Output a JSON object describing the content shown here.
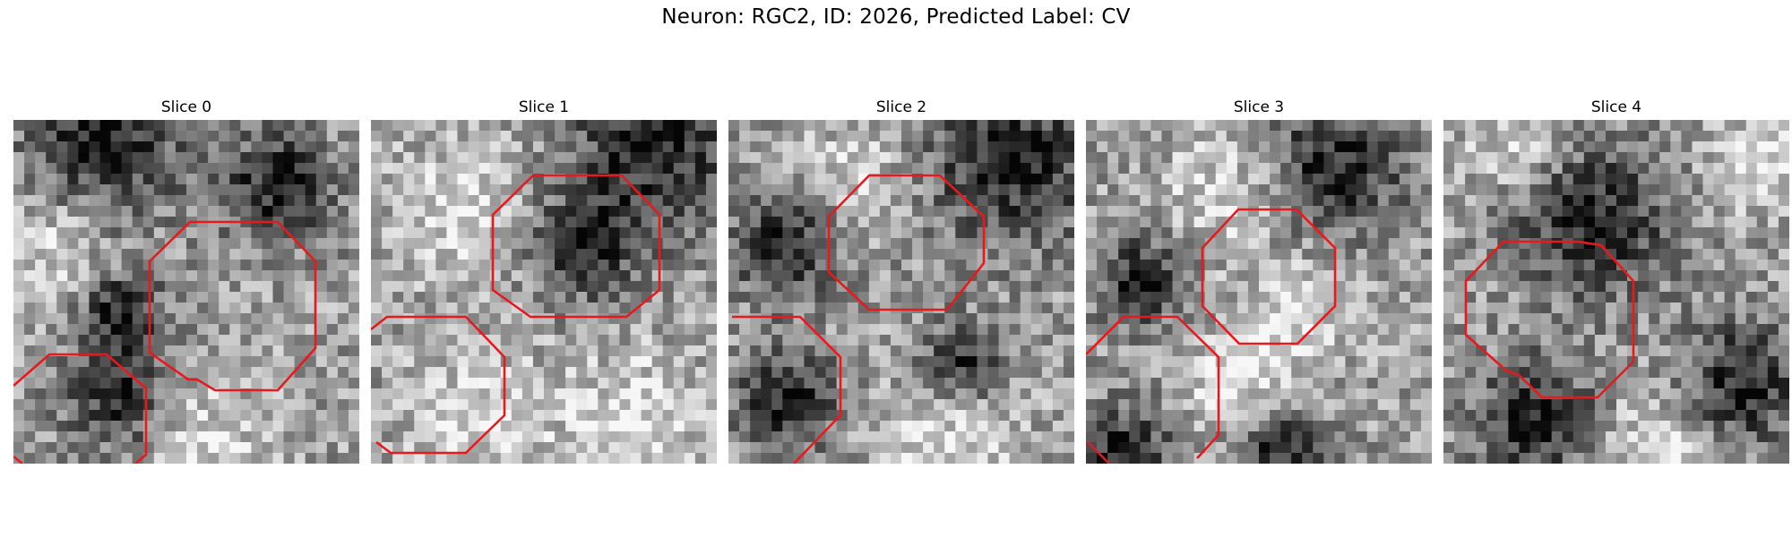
{
  "figure": {
    "title": "Neuron: RGC2, ID: 2026, Predicted Label: CV"
  },
  "panels": [
    {
      "title": "Slice 0",
      "seed": 11,
      "dark_blobs": [
        [
          0.25,
          0.05,
          0.22
        ],
        [
          0.75,
          0.18,
          0.16
        ],
        [
          0.3,
          0.55,
          0.12
        ],
        [
          0.3,
          0.8,
          0.16
        ]
      ],
      "bright_blobs": [
        [
          0.5,
          0.9,
          0.2
        ],
        [
          0.1,
          0.35,
          0.15
        ]
      ]
    },
    {
      "title": "Slice 1",
      "seed": 23,
      "dark_blobs": [
        [
          0.8,
          0.05,
          0.24
        ],
        [
          0.6,
          0.35,
          0.15
        ]
      ],
      "bright_blobs": [
        [
          0.25,
          0.25,
          0.2
        ],
        [
          0.3,
          0.85,
          0.2
        ],
        [
          0.75,
          0.85,
          0.2
        ]
      ]
    },
    {
      "title": "Slice 2",
      "seed": 37,
      "dark_blobs": [
        [
          0.8,
          0.1,
          0.25
        ],
        [
          0.15,
          0.35,
          0.15
        ],
        [
          0.15,
          0.8,
          0.15
        ],
        [
          0.65,
          0.7,
          0.12
        ]
      ],
      "bright_blobs": [
        [
          0.6,
          0.9,
          0.2
        ],
        [
          0.35,
          0.15,
          0.15
        ]
      ]
    },
    {
      "title": "Slice 3",
      "seed": 51,
      "dark_blobs": [
        [
          0.7,
          0.12,
          0.2
        ],
        [
          0.15,
          0.45,
          0.13
        ],
        [
          0.1,
          0.95,
          0.14
        ],
        [
          0.55,
          0.95,
          0.12
        ]
      ],
      "bright_blobs": [
        [
          0.4,
          0.2,
          0.18
        ],
        [
          0.6,
          0.55,
          0.15
        ],
        [
          0.4,
          0.75,
          0.15
        ]
      ]
    },
    {
      "title": "Slice 4",
      "seed": 67,
      "dark_blobs": [
        [
          0.42,
          0.27,
          0.22
        ],
        [
          0.25,
          0.85,
          0.17
        ],
        [
          0.85,
          0.75,
          0.18
        ]
      ],
      "bright_blobs": [
        [
          0.2,
          0.05,
          0.15
        ],
        [
          0.9,
          0.1,
          0.15
        ],
        [
          0.6,
          0.95,
          0.18
        ]
      ]
    }
  ],
  "overlay_color": "#e8191c"
}
